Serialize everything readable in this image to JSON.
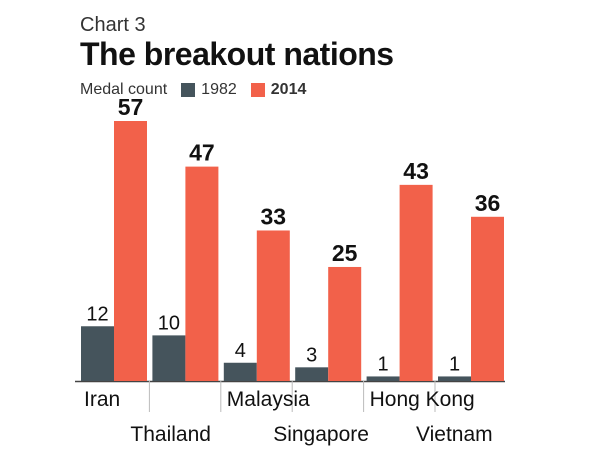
{
  "header": {
    "chart_label": "Chart 3",
    "title": "The breakout nations"
  },
  "legend": {
    "label": "Medal count",
    "items": [
      {
        "name": "1982",
        "color": "#45545c"
      },
      {
        "name": "2014",
        "color": "#f2614a"
      }
    ]
  },
  "chart_data": {
    "type": "bar",
    "title": "The breakout nations",
    "categories": [
      "Iran",
      "Thailand",
      "Malaysia",
      "Singapore",
      "Hong Kong",
      "Vietnam"
    ],
    "series": [
      {
        "name": "1982",
        "values": [
          12,
          10,
          4,
          3,
          1,
          1
        ],
        "color": "#45545c"
      },
      {
        "name": "2014",
        "values": [
          57,
          47,
          33,
          25,
          43,
          36
        ],
        "color": "#f2614a"
      }
    ],
    "ylabel": "Medal count",
    "ylim": [
      0,
      60
    ],
    "label_rows": [
      "high",
      "low",
      "high",
      "low",
      "high",
      "low"
    ]
  }
}
